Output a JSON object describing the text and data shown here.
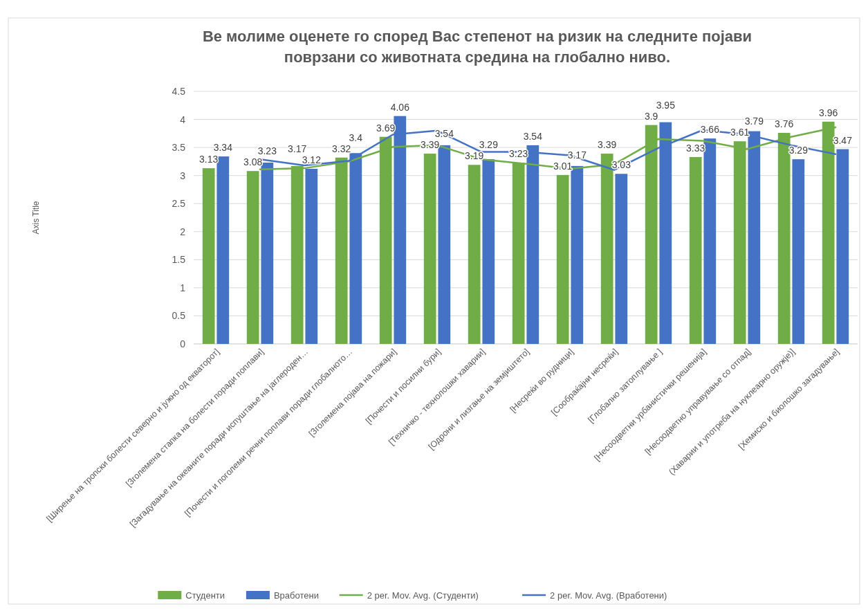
{
  "chart_data": {
    "type": "bar",
    "title": "Ве молиме оценете го според Вас степенот на ризик на следните појави поврзани со животната средина на глобално ниво.",
    "ylabel": "Axis Title",
    "categories": [
      "[Ширење на тропски болести северно и јужно од екваторот]",
      "[Зголемена стапка на болести поради поплави]",
      "[Загадување на океаните поради испуштање на јаглероден…",
      "[Почести и поголеми речни поплави поради глобалното…",
      "[Зголемена појава на пожари]",
      "[Почести и посилни бури]",
      "[Техничко - технолошки хаварии]",
      "[Одрони и лизгање на земјиштето]",
      "[Несреќи во рудници]",
      "[Сообраќајни несреќи]",
      "[Глобално затоплување ]",
      "[Несоодветни урбанистички решенија]",
      "[Несоодветно управување со отпад]",
      "(Хаварии и употреба на нуклеарно оружје)]",
      "[Хемиско и биолошко загадување]"
    ],
    "series": [
      {
        "name": "Студенти",
        "color": "#70ad47",
        "values": [
          3.13,
          3.08,
          3.17,
          3.32,
          3.69,
          3.39,
          3.19,
          3.23,
          3.01,
          3.39,
          3.9,
          3.33,
          3.61,
          3.76,
          3.96
        ],
        "value_labels": [
          "3.13",
          "3.08",
          "3.17",
          "3.32",
          "3.69",
          "3.39",
          "3.19",
          "3.23",
          "3.01",
          "3.39",
          "3.9",
          "3.33",
          "3.61",
          "3.76",
          "3.96"
        ]
      },
      {
        "name": "Вработени",
        "color": "#4472c4",
        "values": [
          3.34,
          3.23,
          3.12,
          3.4,
          4.06,
          3.54,
          3.29,
          3.54,
          3.17,
          3.03,
          3.95,
          3.66,
          3.79,
          3.29,
          3.47
        ],
        "value_labels": [
          "3.34",
          "3.23",
          "3.12",
          "3.4",
          "4.06",
          "3.54",
          "3.29",
          "3.54",
          "3.17",
          "3.03",
          "3.95",
          "3.66",
          "3.79",
          "3.29",
          "3.47"
        ]
      },
      {
        "name": "2 per. Mov. Avg. (Студенти)",
        "type": "line",
        "color": "#70ad47",
        "values": [
          null,
          3.11,
          3.13,
          3.25,
          3.51,
          3.54,
          3.29,
          3.21,
          3.12,
          3.2,
          3.65,
          3.62,
          3.47,
          3.69,
          3.86
        ]
      },
      {
        "name": "2 per. Mov. Avg. (Вработени)",
        "type": "line",
        "color": "#4472c4",
        "values": [
          null,
          3.29,
          3.18,
          3.26,
          3.73,
          3.8,
          3.42,
          3.42,
          3.36,
          3.1,
          3.49,
          3.81,
          3.73,
          3.54,
          3.38
        ]
      }
    ],
    "ylim": [
      0,
      4.5
    ],
    "yticks": [
      0,
      0.5,
      1,
      1.5,
      2,
      2.5,
      3,
      3.5,
      4,
      4.5
    ],
    "grid": "y",
    "legend": "bottom"
  }
}
